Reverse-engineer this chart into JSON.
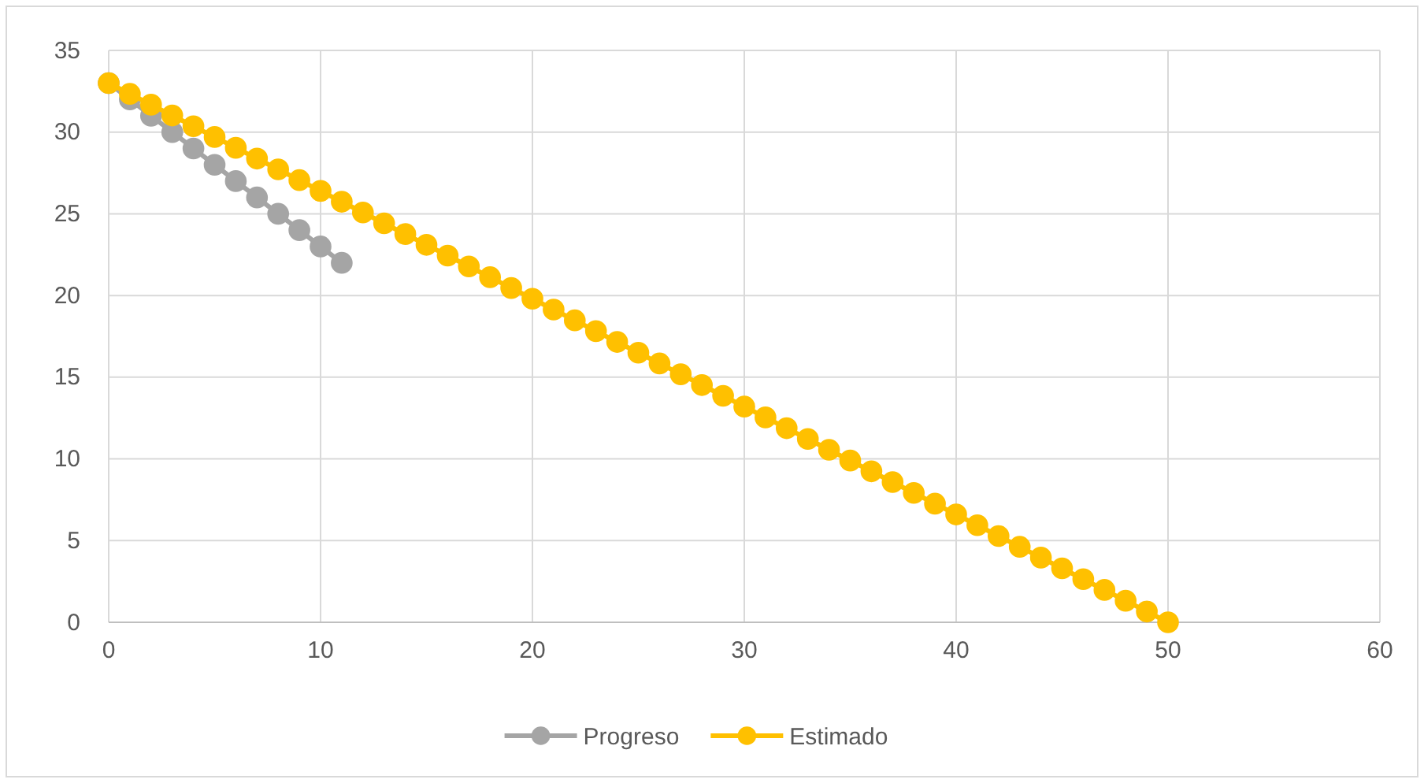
{
  "chart_data": {
    "type": "line",
    "xlim": [
      0,
      60
    ],
    "xticks": [
      0,
      10,
      20,
      30,
      40,
      50,
      60
    ],
    "ylim": [
      0,
      35
    ],
    "yticks": [
      0,
      5,
      10,
      15,
      20,
      25,
      30,
      35
    ],
    "grid": true,
    "legend": "bottom",
    "marker": "circle",
    "line_style": "solid",
    "series": [
      {
        "name": "Progreso",
        "color": "#a5a5a5",
        "x": [
          0,
          1,
          2,
          3,
          4,
          5,
          6,
          7,
          8,
          9,
          10,
          11
        ],
        "values": [
          33,
          32,
          31,
          30,
          29,
          28,
          27,
          26,
          25,
          24,
          23,
          22
        ]
      },
      {
        "name": "Estimado",
        "color": "#ffc000",
        "x": [
          0,
          1,
          2,
          3,
          4,
          5,
          6,
          7,
          8,
          9,
          10,
          11,
          12,
          13,
          14,
          15,
          16,
          17,
          18,
          19,
          20,
          21,
          22,
          23,
          24,
          25,
          26,
          27,
          28,
          29,
          30,
          31,
          32,
          33,
          34,
          35,
          36,
          37,
          38,
          39,
          40,
          41,
          42,
          43,
          44,
          45,
          46,
          47,
          48,
          49,
          50
        ],
        "values": [
          33,
          32.34,
          31.68,
          31.02,
          30.36,
          29.7,
          29.04,
          28.38,
          27.72,
          27.06,
          26.4,
          25.74,
          25.08,
          24.42,
          23.76,
          23.1,
          22.44,
          21.78,
          21.12,
          20.46,
          19.8,
          19.14,
          18.48,
          17.82,
          17.16,
          16.5,
          15.84,
          15.18,
          14.52,
          13.86,
          13.2,
          12.54,
          11.88,
          11.22,
          10.56,
          9.9,
          9.24,
          8.58,
          7.92,
          7.26,
          6.6,
          5.94,
          5.28,
          4.62,
          3.96,
          3.3,
          2.64,
          1.98,
          1.32,
          0.66,
          0
        ]
      }
    ]
  }
}
